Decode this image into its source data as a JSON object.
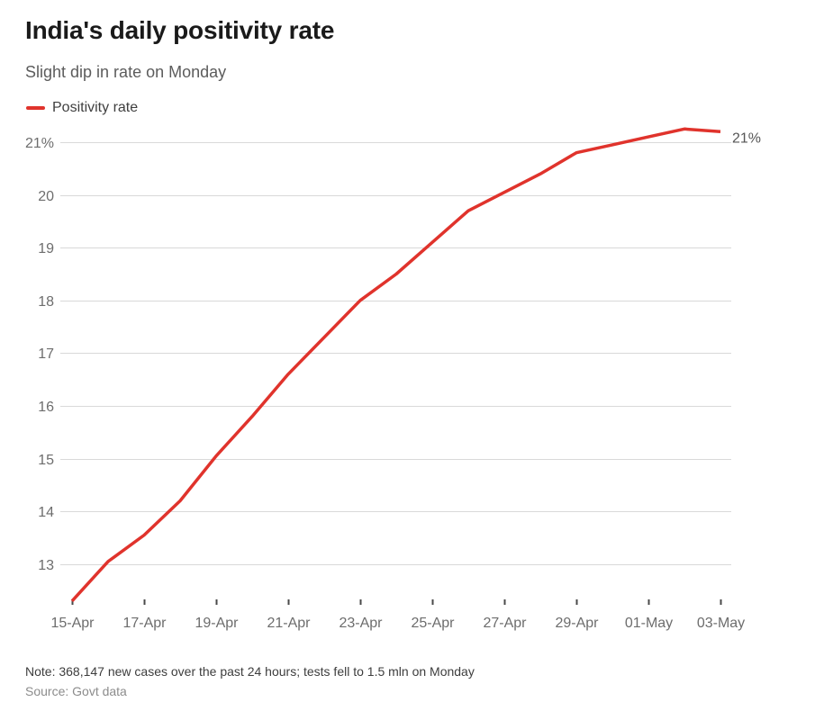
{
  "header": {
    "title": "India's daily positivity rate",
    "subtitle": "Slight dip in rate on Monday"
  },
  "legend": {
    "label": "Positivity rate",
    "color": "#e0332c"
  },
  "chart_data": {
    "type": "line",
    "title": "India's daily positivity rate",
    "categories": [
      "15-Apr",
      "16-Apr",
      "17-Apr",
      "18-Apr",
      "19-Apr",
      "20-Apr",
      "21-Apr",
      "22-Apr",
      "23-Apr",
      "24-Apr",
      "25-Apr",
      "26-Apr",
      "27-Apr",
      "28-Apr",
      "29-Apr",
      "30-Apr",
      "01-May",
      "02-May",
      "03-May"
    ],
    "series": [
      {
        "name": "Positivity rate",
        "color": "#e0332c",
        "values": [
          12.3,
          13.05,
          13.55,
          14.2,
          15.05,
          15.8,
          16.6,
          17.3,
          18.0,
          18.5,
          19.1,
          19.7,
          20.05,
          20.4,
          20.8,
          20.95,
          21.1,
          21.25,
          21.2
        ]
      }
    ],
    "y_ticks": [
      {
        "value": 21,
        "label": "21%"
      },
      {
        "value": 20,
        "label": "20"
      },
      {
        "value": 19,
        "label": "19"
      },
      {
        "value": 18,
        "label": "18"
      },
      {
        "value": 17,
        "label": "17"
      },
      {
        "value": 16,
        "label": "16"
      },
      {
        "value": 15,
        "label": "15"
      },
      {
        "value": 14,
        "label": "14"
      },
      {
        "value": 13,
        "label": "13"
      }
    ],
    "x_tick_every": 2,
    "x_tick_labels": [
      "15-Apr",
      "17-Apr",
      "19-Apr",
      "21-Apr",
      "23-Apr",
      "25-Apr",
      "27-Apr",
      "29-Apr",
      "01-May",
      "03-May"
    ],
    "ylim": [
      12.3,
      21.5
    ],
    "grid": "horizontal",
    "legend_position": "top-left",
    "end_label": "21%",
    "colors": {
      "gridline": "#d9d9d9",
      "tick_mark": "#4a4a4a",
      "axis_label": "#6d6d6d",
      "end_label": "#565656"
    }
  },
  "footer": {
    "note": "Note: 368,147 new cases over the past 24 hours; tests fell to 1.5 mln on Monday",
    "source": "Source: Govt data"
  }
}
